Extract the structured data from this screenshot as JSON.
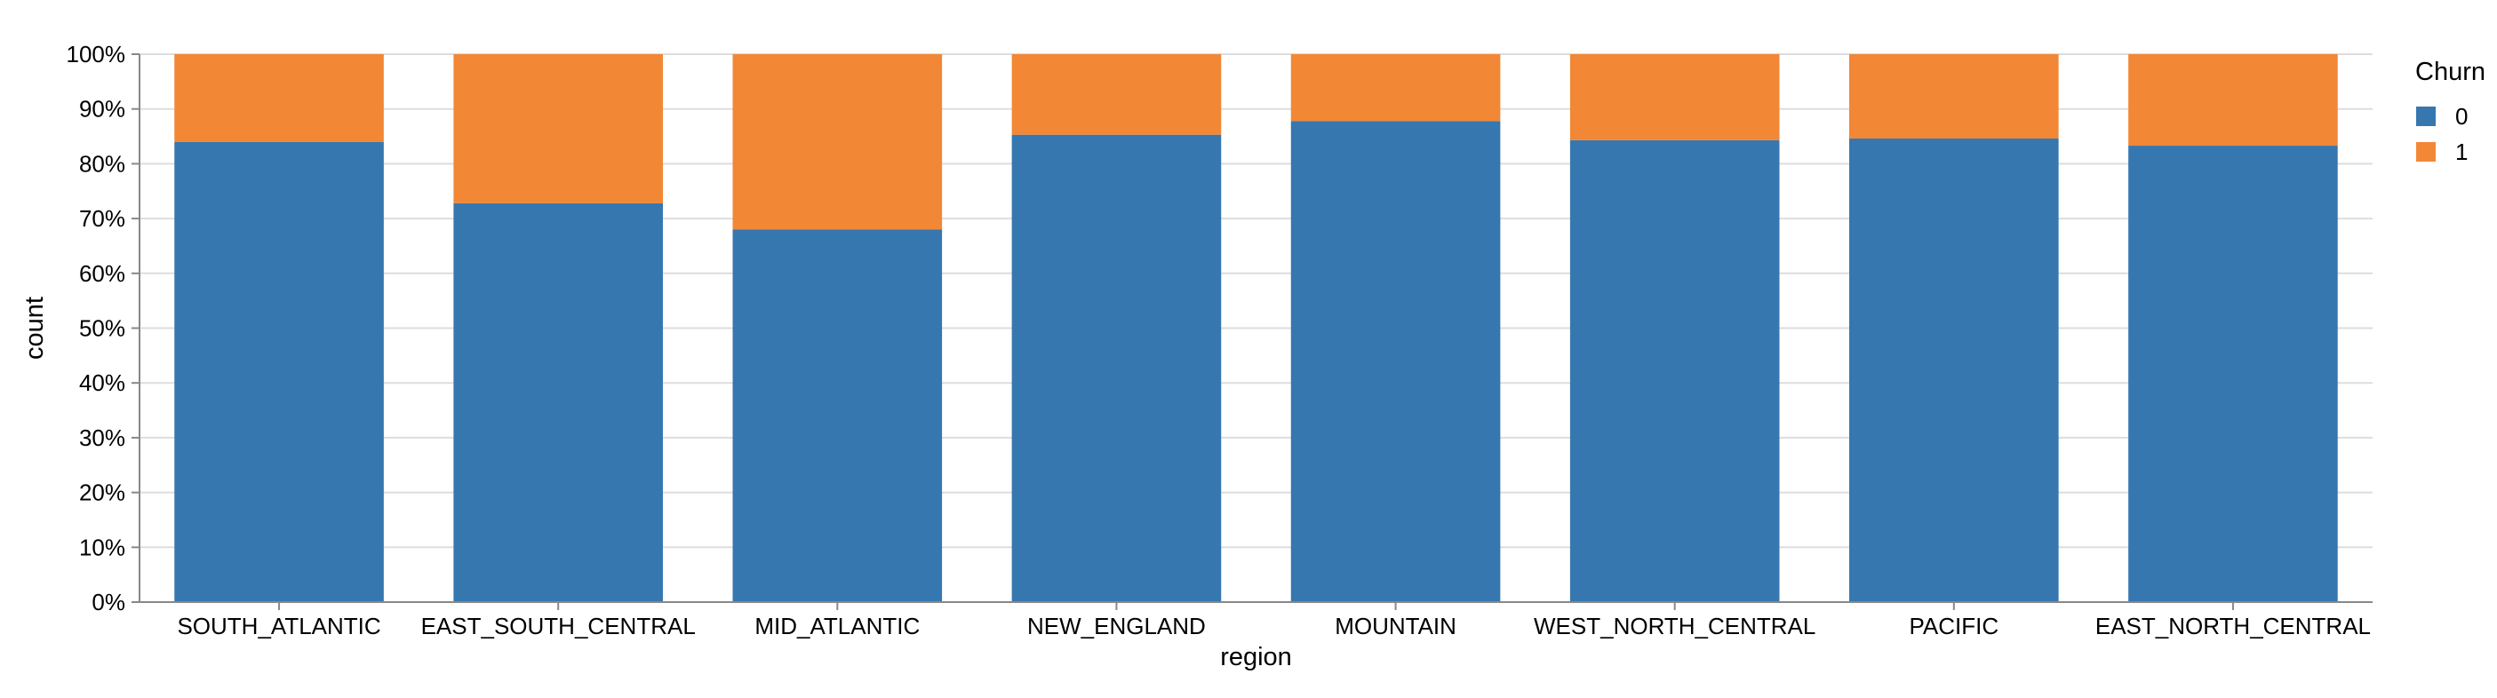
{
  "chart_data": {
    "type": "bar",
    "stacked": "normalize",
    "x_field": "region",
    "xlabel": "region",
    "ylabel": "count",
    "ylim": [
      0,
      1
    ],
    "y_tick_labels": [
      "0%",
      "10%",
      "20%",
      "30%",
      "40%",
      "50%",
      "60%",
      "70%",
      "80%",
      "90%",
      "100%"
    ],
    "grid": true,
    "categories": [
      "SOUTH_ATLANTIC",
      "EAST_SOUTH_CENTRAL",
      "MID_ATLANTIC",
      "NEW_ENGLAND",
      "MOUNTAIN",
      "WEST_NORTH_CENTRAL",
      "PACIFIC",
      "EAST_NORTH_CENTRAL"
    ],
    "series": [
      {
        "name": "0",
        "color": "#3677b0",
        "values": [
          0.84,
          0.728,
          0.68,
          0.853,
          0.878,
          0.843,
          0.846,
          0.833
        ]
      },
      {
        "name": "1",
        "color": "#f28735",
        "values": [
          0.16,
          0.272,
          0.32,
          0.147,
          0.122,
          0.157,
          0.154,
          0.167
        ]
      }
    ],
    "legend": {
      "title": "Churn",
      "placement": "top-right"
    }
  }
}
